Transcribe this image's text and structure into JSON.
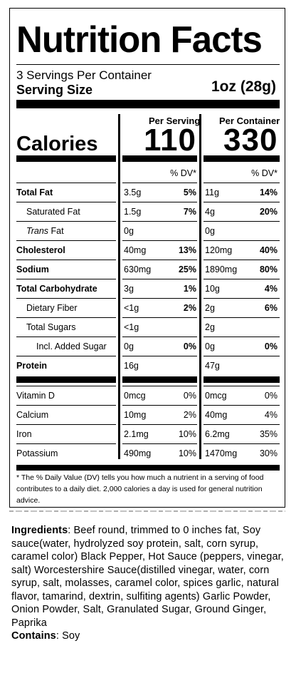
{
  "label": {
    "title": "Nutrition Facts",
    "servings": "3 Servings Per Container",
    "serving_size_label": "Serving Size",
    "serving_size_value": "1oz (28g)",
    "per_serving_header": "Per Serving",
    "per_container_header": "Per Container",
    "calories_label": "Calories",
    "calories_serving": "110",
    "calories_container": "330",
    "dv_header": "% DV*",
    "rows": [
      {
        "name": "Total Fat",
        "bold": true,
        "indent": 0,
        "s_amt": "3.5g",
        "s_dv": "5%",
        "c_amt": "11g",
        "c_dv": "14%"
      },
      {
        "name": "Saturated Fat",
        "bold": false,
        "indent": 1,
        "s_amt": "1.5g",
        "s_dv": "7%",
        "c_amt": "4g",
        "c_dv": "20%"
      },
      {
        "name": "Fat",
        "prefix": "Trans",
        "bold": false,
        "indent": 1,
        "s_amt": "0g",
        "s_dv": "",
        "c_amt": "0g",
        "c_dv": ""
      },
      {
        "name": "Cholesterol",
        "bold": true,
        "indent": 0,
        "s_amt": "40mg",
        "s_dv": "13%",
        "c_amt": "120mg",
        "c_dv": "40%"
      },
      {
        "name": "Sodium",
        "bold": true,
        "indent": 0,
        "s_amt": "630mg",
        "s_dv": "25%",
        "c_amt": "1890mg",
        "c_dv": "80%"
      },
      {
        "name": "Total Carbohydrate",
        "bold": true,
        "indent": 0,
        "s_amt": "3g",
        "s_dv": "1%",
        "c_amt": "10g",
        "c_dv": "4%"
      },
      {
        "name": "Dietary Fiber",
        "bold": false,
        "indent": 1,
        "s_amt": "<1g",
        "s_dv": "2%",
        "c_amt": "2g",
        "c_dv": "6%"
      },
      {
        "name": "Total Sugars",
        "bold": false,
        "indent": 1,
        "s_amt": "<1g",
        "s_dv": "",
        "c_amt": "2g",
        "c_dv": ""
      },
      {
        "name": "Incl. Added Sugar",
        "bold": false,
        "indent": 2,
        "s_amt": "0g",
        "s_dv": "0%",
        "c_amt": "0g",
        "c_dv": "0%"
      },
      {
        "name": "Protein",
        "bold": true,
        "indent": 0,
        "s_amt": "16g",
        "s_dv": "",
        "c_amt": "47g",
        "c_dv": ""
      }
    ],
    "vitamins": [
      {
        "name": "Vitamin D",
        "s_amt": "0mcg",
        "s_dv": "0%",
        "c_amt": "0mcg",
        "c_dv": "0%"
      },
      {
        "name": "Calcium",
        "s_amt": "10mg",
        "s_dv": "2%",
        "c_amt": "40mg",
        "c_dv": "4%"
      },
      {
        "name": "Iron",
        "s_amt": "2.1mg",
        "s_dv": "10%",
        "c_amt": "6.2mg",
        "c_dv": "35%"
      },
      {
        "name": "Potassium",
        "s_amt": "490mg",
        "s_dv": "10%",
        "c_amt": "1470mg",
        "c_dv": "30%"
      }
    ],
    "footnote": "* The % Daily Value (DV) tells you how much a nutrient in a serving of food contributes to a daily diet. 2,000 calories a day is used for general nutrition advice."
  },
  "ingredients": {
    "label": "Ingredients",
    "text": ": Beef round, trimmed to 0 inches fat,  Soy sauce(water, hydrolyzed soy protein, salt, corn syrup, caramel color) Black Pepper, Hot Sauce (peppers, vinegar, salt) Worcestershire Sauce(distilled vinegar, water, corn syrup, salt, molasses, caramel color, spices garlic, natural flavor, tamarind, dextrin, sulfiting agents) Garlic Powder, Onion Powder, Salt, Granulated Sugar, Ground Ginger, Paprika",
    "contains_label": "Contains",
    "contains_text": ":  Soy"
  }
}
